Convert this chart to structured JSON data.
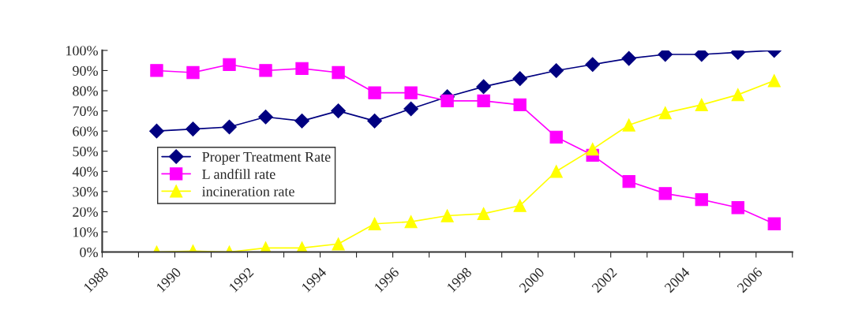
{
  "chart_data": {
    "type": "line",
    "x": [
      1989.5,
      1990.5,
      1991.5,
      1992.5,
      1993.5,
      1994.5,
      1995.5,
      1996.5,
      1997.5,
      1998.5,
      1999.5,
      2000.5,
      2001.5,
      2002.5,
      2003.5,
      2004.5,
      2005.5,
      2006.5
    ],
    "series": [
      {
        "name": "Proper Treatment Rate",
        "color": "#000080",
        "marker": "diamond",
        "values": [
          60,
          61,
          62,
          67,
          65,
          70,
          65,
          71,
          77,
          82,
          86,
          90,
          93,
          96,
          98,
          98,
          99,
          100
        ]
      },
      {
        "name": "L andfill rate",
        "color": "#ff00ff",
        "marker": "square",
        "values": [
          90,
          89,
          93,
          90,
          91,
          89,
          79,
          79,
          75,
          75,
          73,
          57,
          48,
          35,
          29,
          26,
          22,
          14
        ]
      },
      {
        "name": "incineration rate",
        "color": "#ffff00",
        "marker": "triangle",
        "values": [
          0,
          0.5,
          0,
          2,
          2,
          4,
          14,
          15,
          18,
          19,
          23,
          40,
          51,
          63,
          69,
          73,
          78,
          85
        ]
      }
    ],
    "xlim": [
      1988,
      2007
    ],
    "xticks": [
      1988,
      {
        "value": 1989,
        "label": null
      },
      1990,
      {
        "value": 1991,
        "label": null
      },
      1992,
      {
        "value": 1993,
        "label": null
      },
      1994,
      {
        "value": 1995,
        "label": null
      },
      1996,
      {
        "value": 1997,
        "label": null
      },
      1998,
      {
        "value": 1999,
        "label": null
      },
      2000,
      {
        "value": 2001,
        "label": null
      },
      2002,
      {
        "value": 2003,
        "label": null
      },
      2004,
      {
        "value": 2005,
        "label": null
      },
      2006,
      {
        "value": 2007,
        "label": null
      }
    ],
    "ylim": [
      0,
      100
    ],
    "yticks": [
      {
        "value": 0,
        "label": "0%"
      },
      {
        "value": 10,
        "label": "10%"
      },
      {
        "value": 20,
        "label": "20%"
      },
      {
        "value": 30,
        "label": "30%"
      },
      {
        "value": 40,
        "label": "40%"
      },
      {
        "value": 50,
        "label": "50%"
      },
      {
        "value": 60,
        "label": "60%"
      },
      {
        "value": 70,
        "label": "70%"
      },
      {
        "value": 80,
        "label": "80%"
      },
      {
        "value": 90,
        "label": "90%"
      },
      {
        "value": 100,
        "label": "100%"
      }
    ],
    "grid": false,
    "legend": "center left",
    "line_style": "solid"
  }
}
